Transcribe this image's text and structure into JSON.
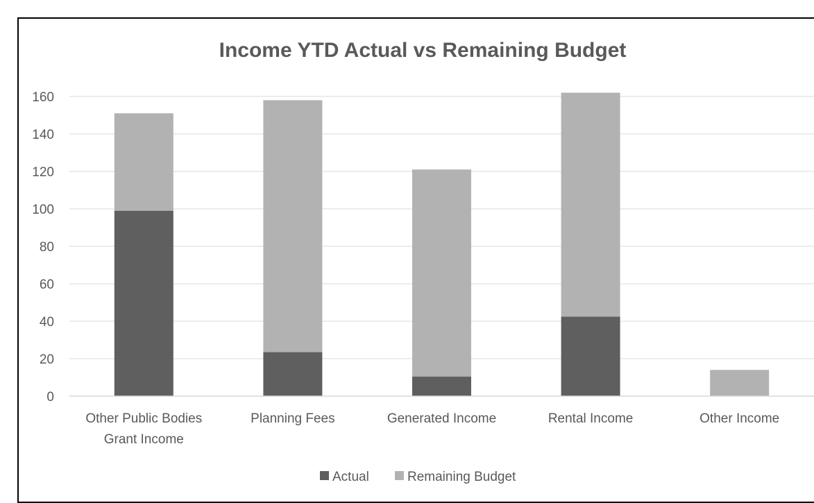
{
  "chart_data": {
    "type": "bar",
    "stacked": true,
    "title": "Income YTD Actual vs Remaining Budget",
    "xlabel": "",
    "ylabel": "",
    "categories": [
      [
        "Other Public Bodies",
        "Grant Income"
      ],
      [
        "Planning Fees"
      ],
      [
        "Generated Income"
      ],
      [
        "Rental Income"
      ],
      [
        "Other Income"
      ]
    ],
    "series": [
      {
        "name": "Actual",
        "color": "#5f5f5f",
        "values": [
          99,
          23.5,
          10.5,
          42.5,
          0
        ]
      },
      {
        "name": "Remaining Budget",
        "color": "#b2b2b2",
        "values": [
          52,
          134.5,
          110.5,
          119.5,
          14
        ]
      }
    ],
    "ylim": [
      0,
      160
    ],
    "yticks": [
      0,
      20,
      40,
      60,
      80,
      100,
      120,
      140,
      160
    ],
    "grid": true,
    "legend_position": "bottom"
  }
}
